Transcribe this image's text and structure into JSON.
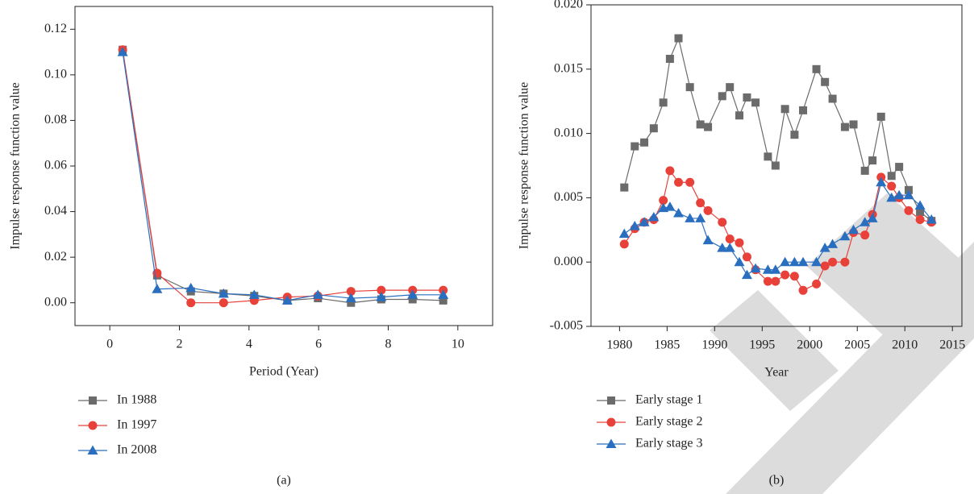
{
  "chart_data": [
    {
      "type": "line",
      "caption": "(a)",
      "x_label": "Period (Year)",
      "y_label": "Impulse response function value",
      "x": [
        0.37,
        1.36,
        2.33,
        3.27,
        4.15,
        5.1,
        5.98,
        6.93,
        7.8,
        8.7,
        9.58
      ],
      "series": [
        {
          "name": "In 1988",
          "color": "#6b6b6b",
          "marker": "square",
          "values": [
            0.111,
            0.012,
            0.005,
            0.004,
            0.003,
            0.001,
            0.002,
            0.0,
            0.0015,
            0.0015,
            0.001
          ]
        },
        {
          "name": "In 1997",
          "color": "#e8413a",
          "marker": "circle",
          "values": [
            0.111,
            0.013,
            0.0,
            0.0,
            0.001,
            0.0025,
            0.003,
            0.005,
            0.0055,
            0.0055,
            0.0055
          ]
        },
        {
          "name": "In 2008",
          "color": "#2a6fbf",
          "marker": "triangle",
          "values": [
            0.11,
            0.006,
            0.0065,
            0.004,
            0.0035,
            0.001,
            0.0035,
            0.002,
            0.0025,
            0.0035,
            0.0035
          ]
        }
      ],
      "xlim": [
        -1,
        11
      ],
      "xticks": [
        0,
        2,
        4,
        6,
        8,
        10
      ],
      "ylim": [
        -0.01,
        0.13
      ],
      "yticks": [
        {
          "value": 0,
          "label": "0.00"
        },
        {
          "value": 0.02,
          "label": "0.02"
        },
        {
          "value": 0.04,
          "label": "0.04"
        },
        {
          "value": 0.06,
          "label": "0.06"
        },
        {
          "value": 0.08,
          "label": "0.08"
        },
        {
          "value": 0.1,
          "label": "0.10"
        },
        {
          "value": 0.12,
          "label": "0.12"
        }
      ]
    },
    {
      "type": "line",
      "caption": "(b)",
      "x_label": "Year",
      "y_label": "Impulse response function value",
      "x": [
        1980.5,
        1981.6,
        1982.6,
        1983.6,
        1984.6,
        1985.3,
        1986.2,
        1987.4,
        1988.5,
        1989.3,
        1990.8,
        1991.6,
        1992.6,
        1993.4,
        1994.3,
        1995.6,
        1996.4,
        1997.4,
        1998.4,
        1999.3,
        2000.7,
        2001.6,
        2002.4,
        2003.7,
        2004.6,
        2005.8,
        2006.6,
        2007.5,
        2008.6,
        2009.4,
        2010.4,
        2011.6,
        2012.8
      ],
      "series": [
        {
          "name": "Early stage 1",
          "color": "#6b6b6b",
          "marker": "square",
          "values": [
            0.0058,
            0.009,
            0.0093,
            0.0104,
            0.0124,
            0.0158,
            0.0174,
            0.0136,
            0.0107,
            0.0105,
            0.0129,
            0.0136,
            0.0114,
            0.0128,
            0.0124,
            0.0082,
            0.0075,
            0.0119,
            0.0099,
            0.0118,
            0.015,
            0.014,
            0.0127,
            0.0105,
            0.0107,
            0.0071,
            0.0079,
            0.0113,
            0.0067,
            0.0074,
            0.0056,
            0.0039,
            0.0032
          ]
        },
        {
          "name": "Early stage 2",
          "color": "#e8413a",
          "marker": "circle",
          "values": [
            0.0014,
            0.0026,
            0.0031,
            0.0033,
            0.0048,
            0.0071,
            0.0062,
            0.0062,
            0.0046,
            0.004,
            0.0031,
            0.0018,
            0.0015,
            0.0004,
            -0.0006,
            -0.0015,
            -0.0015,
            -0.001,
            -0.0011,
            -0.0022,
            -0.0017,
            -0.0003,
            0.0,
            0.0,
            0.0023,
            0.0021,
            0.0037,
            0.0066,
            0.0059,
            0.005,
            0.004,
            0.0033,
            0.0031
          ]
        },
        {
          "name": "Early stage 3",
          "color": "#2a6fbf",
          "marker": "triangle",
          "values": [
            0.0022,
            0.0028,
            0.0031,
            0.0035,
            0.0042,
            0.0043,
            0.0038,
            0.0034,
            0.0034,
            0.0017,
            0.0011,
            0.0011,
            0.0,
            -0.001,
            -0.0005,
            -0.0006,
            -0.0006,
            0.0,
            0.0,
            0.0,
            0.0,
            0.0011,
            0.0014,
            0.002,
            0.0025,
            0.0031,
            0.0034,
            0.0062,
            0.005,
            0.0052,
            0.0052,
            0.0044,
            0.0033
          ]
        }
      ],
      "xlim": [
        1977,
        2016
      ],
      "xticks": [
        1980,
        1985,
        1990,
        1995,
        2000,
        2005,
        2010,
        2015
      ],
      "ylim": [
        -0.005,
        0.02
      ],
      "yticks": [
        {
          "value": -0.005,
          "label": "-0.005"
        },
        {
          "value": 0,
          "label": "0.000"
        },
        {
          "value": 0.005,
          "label": "0.005"
        },
        {
          "value": 0.01,
          "label": "0.010"
        },
        {
          "value": 0.015,
          "label": "0.015"
        },
        {
          "value": 0.02,
          "label": "0.020"
        }
      ]
    }
  ]
}
